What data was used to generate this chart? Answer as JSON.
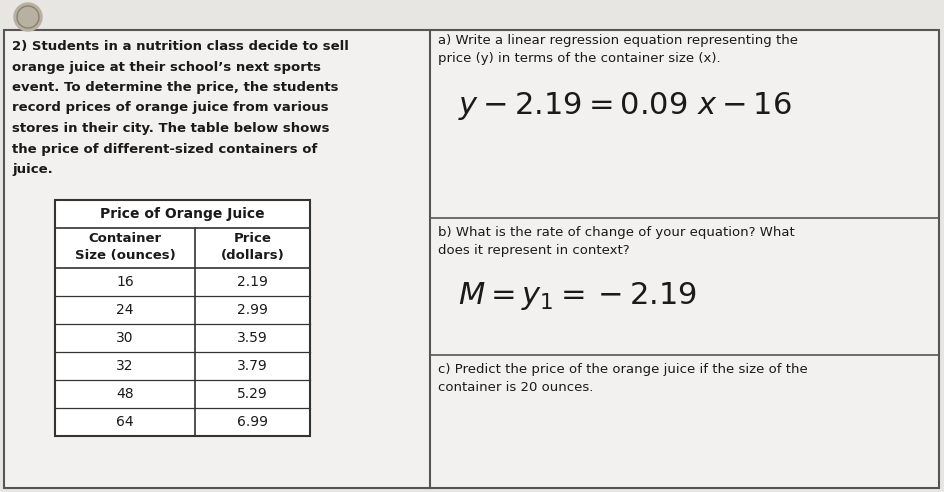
{
  "bg_color": "#d8d5d0",
  "panel_color": "#e8e6e2",
  "white": "#f2f1ef",
  "title_number": "2)",
  "left_lines": [
    "2) Students in a nutrition class decide to sell",
    "orange juice at their school’s next sports",
    "event. To determine the price, the students",
    "record prices of orange juice from various",
    "stores in their city. The table below shows",
    "the price of different-sized containers of",
    "juice."
  ],
  "table_title": "Price of Orange Juice",
  "col1_header_line1": "Container",
  "col1_header_line2": "Size (ounces)",
  "col2_header_line1": "Price",
  "col2_header_line2": "(dollars)",
  "table_data": [
    [
      "16",
      "2.19"
    ],
    [
      "24",
      "2.99"
    ],
    [
      "30",
      "3.59"
    ],
    [
      "32",
      "3.79"
    ],
    [
      "48",
      "5.29"
    ],
    [
      "64",
      "6.99"
    ]
  ],
  "part_a_label_line1": "a) Write a linear regression equation representing the",
  "part_a_label_line2": "price (y) in terms of the container size (x).",
  "part_a_answer": "y − 2.19 = 0.09 x −16",
  "part_b_label_line1": "b) What is the rate of change of your equation? What",
  "part_b_label_line2": "does it represent in context?",
  "part_b_answer": "M = y₁= −2.19",
  "part_c_label_line1": "c) Predict the price of the orange juice if the size of the",
  "part_c_label_line2": "container is 20 ounces.",
  "text_color": "#1a1a1a",
  "hw_color": "#1a1a1a",
  "border_color": "#555555",
  "table_border": "#333333"
}
